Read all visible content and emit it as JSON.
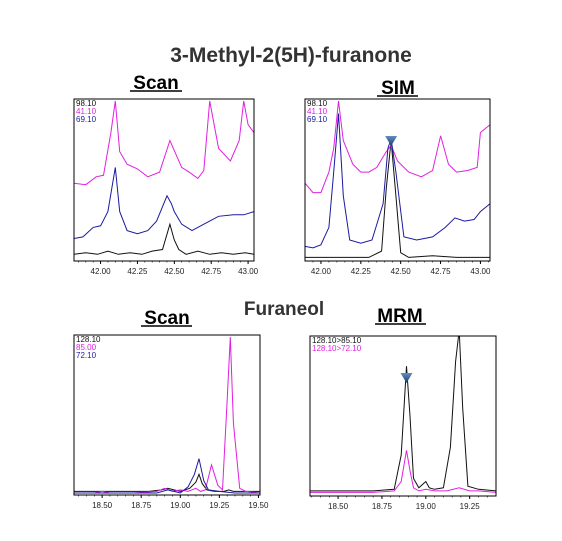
{
  "figure": {
    "title": "3-Methyl-2(5H)-furanone",
    "section2_title": "Furaneol"
  },
  "colors": {
    "black": "#111111",
    "magenta": "#e020e0",
    "blue": "#1a1aa0",
    "marker": "#2a5a90"
  },
  "chart_data": [
    {
      "type": "line",
      "title": "Scan",
      "xlabel": "",
      "ylabel": "",
      "xlim": [
        41.82,
        43.04
      ],
      "ylim": [
        0,
        1
      ],
      "xticks": [
        "42.00",
        "42.25",
        "42.50",
        "42.75",
        "43.00"
      ],
      "xtick_values": [
        42.0,
        42.25,
        42.5,
        42.75,
        43.0
      ],
      "legend": [
        "98.10",
        "41.10",
        "69.10"
      ],
      "grid": false,
      "series": [
        {
          "name": "98.10",
          "color": "#111111",
          "x": [
            41.82,
            41.9,
            41.98,
            42.05,
            42.12,
            42.2,
            42.28,
            42.35,
            42.42,
            42.47,
            42.5,
            42.53,
            42.58,
            42.66,
            42.74,
            42.82,
            42.9,
            42.98,
            43.04
          ],
          "y": [
            0.03,
            0.04,
            0.03,
            0.05,
            0.03,
            0.04,
            0.03,
            0.05,
            0.06,
            0.22,
            0.12,
            0.06,
            0.03,
            0.05,
            0.03,
            0.04,
            0.03,
            0.04,
            0.03
          ]
        },
        {
          "name": "41.10",
          "color": "#e020e0",
          "x": [
            41.82,
            41.9,
            41.97,
            42.02,
            42.07,
            42.1,
            42.13,
            42.18,
            42.25,
            42.32,
            42.4,
            42.47,
            42.55,
            42.6,
            42.66,
            42.7,
            42.74,
            42.8,
            42.88,
            42.94,
            42.97,
            43.0,
            43.04
          ],
          "y": [
            0.48,
            0.47,
            0.52,
            0.53,
            0.8,
            1.0,
            0.68,
            0.6,
            0.57,
            0.52,
            0.55,
            0.75,
            0.58,
            0.55,
            0.51,
            0.56,
            1.0,
            0.7,
            0.62,
            0.75,
            1.0,
            0.85,
            0.8
          ]
        },
        {
          "name": "69.10",
          "color": "#1a1aa0",
          "x": [
            41.82,
            41.88,
            41.95,
            42.0,
            42.05,
            42.1,
            42.13,
            42.18,
            42.25,
            42.32,
            42.38,
            42.45,
            42.48,
            42.5,
            42.55,
            42.62,
            42.7,
            42.8,
            42.9,
            42.97,
            43.04
          ],
          "y": [
            0.13,
            0.14,
            0.2,
            0.21,
            0.3,
            0.58,
            0.3,
            0.18,
            0.16,
            0.18,
            0.24,
            0.4,
            0.35,
            0.3,
            0.22,
            0.18,
            0.22,
            0.27,
            0.28,
            0.28,
            0.3
          ]
        }
      ]
    },
    {
      "type": "line",
      "title": "SIM",
      "xlabel": "",
      "ylabel": "",
      "xlim": [
        41.9,
        43.06
      ],
      "ylim": [
        0,
        1
      ],
      "xticks": [
        "42.00",
        "42.25",
        "42.50",
        "42.75",
        "43.00"
      ],
      "xtick_values": [
        42.0,
        42.25,
        42.5,
        42.75,
        43.0
      ],
      "legend": [
        "98.10",
        "41.10",
        "69.10"
      ],
      "grid": false,
      "series": [
        {
          "name": "98.10",
          "color": "#111111",
          "x": [
            41.9,
            42.0,
            42.1,
            42.2,
            42.3,
            42.38,
            42.41,
            42.44,
            42.47,
            42.5,
            42.55,
            42.7,
            42.85,
            43.0,
            43.06
          ],
          "y": [
            0.01,
            0.01,
            0.01,
            0.01,
            0.01,
            0.05,
            0.45,
            0.75,
            0.4,
            0.04,
            0.01,
            0.02,
            0.01,
            0.01,
            0.01
          ]
        },
        {
          "name": "41.10",
          "color": "#e020e0",
          "x": [
            41.9,
            41.95,
            42.0,
            42.05,
            42.08,
            42.11,
            42.14,
            42.2,
            42.25,
            42.3,
            42.35,
            42.41,
            42.44,
            42.48,
            42.55,
            42.63,
            42.7,
            42.75,
            42.8,
            42.85,
            42.92,
            42.98,
            43.0,
            43.06
          ],
          "y": [
            0.48,
            0.42,
            0.42,
            0.55,
            0.7,
            1.0,
            0.75,
            0.6,
            0.55,
            0.55,
            0.58,
            0.68,
            0.72,
            0.62,
            0.55,
            0.52,
            0.56,
            0.78,
            0.6,
            0.55,
            0.56,
            0.58,
            0.8,
            0.85
          ]
        },
        {
          "name": "69.10",
          "color": "#1a1aa0",
          "x": [
            41.9,
            41.95,
            42.0,
            42.05,
            42.08,
            42.11,
            42.14,
            42.18,
            42.25,
            42.32,
            42.39,
            42.42,
            42.44,
            42.47,
            42.52,
            42.6,
            42.7,
            42.78,
            42.84,
            42.9,
            42.96,
            43.0,
            43.06
          ],
          "y": [
            0.08,
            0.07,
            0.09,
            0.2,
            0.55,
            0.92,
            0.4,
            0.12,
            0.1,
            0.12,
            0.35,
            0.7,
            0.76,
            0.55,
            0.14,
            0.12,
            0.14,
            0.2,
            0.26,
            0.24,
            0.25,
            0.3,
            0.35
          ]
        }
      ]
    },
    {
      "type": "line",
      "title": "Scan",
      "xlabel": "",
      "ylabel": "",
      "xlim": [
        18.32,
        19.51
      ],
      "ylim": [
        0,
        1
      ],
      "xticks": [
        "18.50",
        "18.75",
        "19.00",
        "19.25",
        "19.50"
      ],
      "xtick_values": [
        18.5,
        18.75,
        19.0,
        19.25,
        19.5
      ],
      "legend": [
        "128.10",
        "85.00",
        "72.10"
      ],
      "grid": false,
      "series": [
        {
          "name": "128.10",
          "color": "#111111",
          "x": [
            18.32,
            18.4,
            18.6,
            18.8,
            18.88,
            18.92,
            18.96,
            19.0,
            19.06,
            19.1,
            19.12,
            19.14,
            19.17,
            19.22,
            19.28,
            19.31,
            19.34,
            19.4,
            19.51
          ],
          "y": [
            0.01,
            0.01,
            0.01,
            0.01,
            0.02,
            0.03,
            0.02,
            0.01,
            0.03,
            0.07,
            0.12,
            0.06,
            0.02,
            0.01,
            0.01,
            0.02,
            0.01,
            0.01,
            0.01
          ]
        },
        {
          "name": "85.00",
          "color": "#e020e0",
          "x": [
            18.32,
            18.45,
            18.5,
            18.55,
            18.7,
            18.85,
            18.9,
            18.95,
            19.0,
            19.05,
            19.1,
            19.13,
            19.16,
            19.2,
            19.24,
            19.27,
            19.3,
            19.32,
            19.34,
            19.38,
            19.42,
            19.51
          ],
          "y": [
            0.0,
            0.0,
            0.01,
            0.0,
            0.0,
            0.01,
            0.03,
            0.01,
            0.02,
            0.01,
            0.03,
            0.01,
            0.02,
            0.18,
            0.05,
            0.02,
            0.6,
            1.0,
            0.45,
            0.03,
            0.01,
            0.0
          ]
        },
        {
          "name": "72.10",
          "color": "#1a1aa0",
          "x": [
            18.32,
            18.5,
            18.7,
            18.85,
            18.92,
            18.96,
            19.0,
            19.05,
            19.09,
            19.12,
            19.15,
            19.18,
            19.25,
            19.35,
            19.51
          ],
          "y": [
            0.0,
            0.0,
            0.0,
            0.0,
            0.02,
            0.01,
            0.0,
            0.04,
            0.12,
            0.22,
            0.08,
            0.02,
            0.01,
            0.0,
            0.0
          ]
        }
      ]
    },
    {
      "type": "line",
      "title": "MRM",
      "xlabel": "",
      "ylabel": "",
      "xlim": [
        18.34,
        19.4
      ],
      "ylim": [
        0,
        1
      ],
      "xticks": [
        "18.50",
        "18.75",
        "19.00",
        "19.25"
      ],
      "xtick_values": [
        18.5,
        18.75,
        19.0,
        19.25
      ],
      "legend": [
        "128.10>85.10",
        "128.10>72.10"
      ],
      "grid": false,
      "series": [
        {
          "name": "128.10>85.10",
          "color": "#111111",
          "x": [
            18.34,
            18.5,
            18.7,
            18.82,
            18.86,
            18.89,
            18.91,
            18.93,
            18.96,
            19.0,
            19.02,
            19.05,
            19.1,
            19.14,
            19.17,
            19.19,
            19.21,
            19.24,
            19.3,
            19.4
          ],
          "y": [
            0.02,
            0.02,
            0.02,
            0.03,
            0.25,
            0.82,
            0.5,
            0.1,
            0.04,
            0.08,
            0.04,
            0.03,
            0.04,
            0.3,
            0.85,
            1.05,
            0.55,
            0.05,
            0.03,
            0.02
          ]
        },
        {
          "name": "128.10>72.10",
          "color": "#e020e0",
          "x": [
            18.34,
            18.5,
            18.7,
            18.82,
            18.86,
            18.89,
            18.91,
            18.93,
            18.96,
            19.0,
            19.05,
            19.12,
            19.19,
            19.25,
            19.3,
            19.4
          ],
          "y": [
            0.01,
            0.01,
            0.01,
            0.02,
            0.08,
            0.28,
            0.15,
            0.04,
            0.02,
            0.03,
            0.02,
            0.02,
            0.04,
            0.02,
            0.02,
            0.01
          ]
        }
      ]
    }
  ]
}
